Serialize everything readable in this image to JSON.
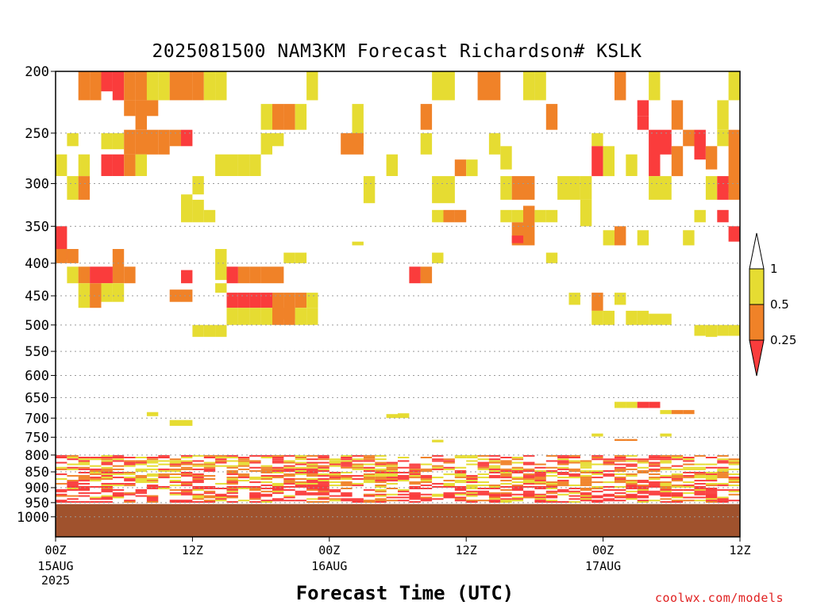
{
  "chart_data": {
    "type": "heatmap",
    "title": "2025081500 NAM3KM Forecast Richardson# KSLK",
    "xlabel": "Forecast Time (UTC)",
    "ylabel": "",
    "y_axis": {
      "scale": "log-pressure",
      "ylim": [
        1000,
        200
      ],
      "ticks": [
        200,
        250,
        300,
        350,
        400,
        450,
        500,
        550,
        600,
        650,
        700,
        750,
        800,
        850,
        900,
        950,
        1000
      ],
      "gridlines": true
    },
    "x_axis": {
      "unit": "forecast hour",
      "xlim": [
        0,
        60
      ],
      "ticks": [
        {
          "hour": 0,
          "label": "00Z",
          "date": "15AUG",
          "year": "2025"
        },
        {
          "hour": 12,
          "label": "12Z",
          "date": "",
          "year": ""
        },
        {
          "hour": 24,
          "label": "00Z",
          "date": "16AUG",
          "year": ""
        },
        {
          "hour": 36,
          "label": "12Z",
          "date": "",
          "year": ""
        },
        {
          "hour": 48,
          "label": "00Z",
          "date": "17AUG",
          "year": ""
        },
        {
          "hour": 60,
          "label": "12Z",
          "date": "",
          "year": ""
        }
      ]
    },
    "legend": {
      "placement": "right",
      "entries": [
        {
          "range": [
            0.5,
            1
          ],
          "color": "#e6dc32",
          "label": "1"
        },
        {
          "range": [
            0.25,
            0.5
          ],
          "color": "#f08228",
          "label": "0.5"
        },
        {
          "range": [
            0,
            0.25
          ],
          "color": "#fa3c3c",
          "label": "0.25"
        }
      ]
    },
    "ground": {
      "color": "#a0522d",
      "top_hpa": 955
    },
    "cells": [
      {
        "t": 2.5,
        "p1": 200,
        "p2": 222,
        "c": 1
      },
      {
        "t": 3.5,
        "p1": 200,
        "p2": 222,
        "c": 1
      },
      {
        "t": 4.5,
        "p1": 200,
        "p2": 215,
        "c": 2
      },
      {
        "t": 5.5,
        "p1": 200,
        "p2": 222,
        "c": 2
      },
      {
        "t": 6.5,
        "p1": 200,
        "p2": 222,
        "c": 1
      },
      {
        "t": 7.5,
        "p1": 200,
        "p2": 222,
        "c": 1
      },
      {
        "t": 8.5,
        "p1": 200,
        "p2": 222,
        "c": 0
      },
      {
        "t": 9.5,
        "p1": 200,
        "p2": 222,
        "c": 0
      },
      {
        "t": 10.5,
        "p1": 200,
        "p2": 222,
        "c": 1
      },
      {
        "t": 11.5,
        "p1": 200,
        "p2": 222,
        "c": 1
      },
      {
        "t": 12.5,
        "p1": 200,
        "p2": 222,
        "c": 1
      },
      {
        "t": 13.5,
        "p1": 200,
        "p2": 222,
        "c": 0
      },
      {
        "t": 14.5,
        "p1": 200,
        "p2": 222,
        "c": 0
      },
      {
        "t": 22.5,
        "p1": 200,
        "p2": 222,
        "c": 0
      },
      {
        "t": 33.5,
        "p1": 200,
        "p2": 222,
        "c": 0
      },
      {
        "t": 34.5,
        "p1": 200,
        "p2": 222,
        "c": 0
      },
      {
        "t": 37.5,
        "p1": 200,
        "p2": 222,
        "c": 1
      },
      {
        "t": 38.5,
        "p1": 200,
        "p2": 222,
        "c": 1
      },
      {
        "t": 41.5,
        "p1": 200,
        "p2": 222,
        "c": 0
      },
      {
        "t": 42.5,
        "p1": 200,
        "p2": 222,
        "c": 0
      },
      {
        "t": 49.5,
        "p1": 200,
        "p2": 222,
        "c": 1
      },
      {
        "t": 52.5,
        "p1": 200,
        "p2": 222,
        "c": 0
      },
      {
        "t": 59.5,
        "p1": 200,
        "p2": 222,
        "c": 0
      },
      {
        "t": 6.5,
        "p1": 222,
        "p2": 235,
        "c": 1
      },
      {
        "t": 7.5,
        "p1": 222,
        "p2": 247,
        "c": 1
      },
      {
        "t": 8.5,
        "p1": 222,
        "p2": 235,
        "c": 1
      },
      {
        "t": 18.5,
        "p1": 225,
        "p2": 247,
        "c": 0
      },
      {
        "t": 19.5,
        "p1": 225,
        "p2": 247,
        "c": 1
      },
      {
        "t": 20.5,
        "p1": 225,
        "p2": 247,
        "c": 1
      },
      {
        "t": 21.5,
        "p1": 225,
        "p2": 247,
        "c": 0
      },
      {
        "t": 26.5,
        "p1": 225,
        "p2": 262,
        "c": 0
      },
      {
        "t": 32.5,
        "p1": 225,
        "p2": 247,
        "c": 1
      },
      {
        "t": 43.5,
        "p1": 225,
        "p2": 247,
        "c": 1
      },
      {
        "t": 51.5,
        "p1": 222,
        "p2": 235,
        "c": 2
      },
      {
        "t": 51.5,
        "p1": 235,
        "p2": 247,
        "c": 2
      },
      {
        "t": 54.5,
        "p1": 222,
        "p2": 247,
        "c": 1
      },
      {
        "t": 58.5,
        "p1": 222,
        "p2": 247,
        "c": 0
      },
      {
        "t": 1.5,
        "p1": 250,
        "p2": 262,
        "c": 0
      },
      {
        "t": 4.5,
        "p1": 250,
        "p2": 265,
        "c": 0
      },
      {
        "t": 5.5,
        "p1": 250,
        "p2": 265,
        "c": 0
      },
      {
        "t": 6.5,
        "p1": 247,
        "p2": 270,
        "c": 1
      },
      {
        "t": 7.5,
        "p1": 247,
        "p2": 270,
        "c": 1
      },
      {
        "t": 8.5,
        "p1": 247,
        "p2": 270,
        "c": 1
      },
      {
        "t": 9.5,
        "p1": 247,
        "p2": 270,
        "c": 1
      },
      {
        "t": 10.5,
        "p1": 247,
        "p2": 262,
        "c": 1
      },
      {
        "t": 11.5,
        "p1": 247,
        "p2": 262,
        "c": 2
      },
      {
        "t": 18.5,
        "p1": 250,
        "p2": 270,
        "c": 0
      },
      {
        "t": 19.5,
        "p1": 250,
        "p2": 262,
        "c": 0
      },
      {
        "t": 25.5,
        "p1": 250,
        "p2": 270,
        "c": 1
      },
      {
        "t": 26.5,
        "p1": 250,
        "p2": 270,
        "c": 1
      },
      {
        "t": 32.5,
        "p1": 250,
        "p2": 270,
        "c": 0
      },
      {
        "t": 38.5,
        "p1": 250,
        "p2": 270,
        "c": 0
      },
      {
        "t": 47.5,
        "p1": 250,
        "p2": 262,
        "c": 0
      },
      {
        "t": 52.5,
        "p1": 247,
        "p2": 292,
        "c": 2
      },
      {
        "t": 53.5,
        "p1": 247,
        "p2": 270,
        "c": 2
      },
      {
        "t": 54.5,
        "p1": 262,
        "p2": 292,
        "c": 1
      },
      {
        "t": 55.5,
        "p1": 247,
        "p2": 262,
        "c": 1
      },
      {
        "t": 56.5,
        "p1": 247,
        "p2": 275,
        "c": 2
      },
      {
        "t": 57.5,
        "p1": 262,
        "p2": 285,
        "c": 1
      },
      {
        "t": 58.5,
        "p1": 247,
        "p2": 262,
        "c": 0
      },
      {
        "t": 59.5,
        "p1": 247,
        "p2": 310,
        "c": 1
      },
      {
        "t": 0.5,
        "p1": 270,
        "p2": 292,
        "c": 0
      },
      {
        "t": 2.5,
        "p1": 270,
        "p2": 292,
        "c": 0
      },
      {
        "t": 4.5,
        "p1": 270,
        "p2": 292,
        "c": 2
      },
      {
        "t": 5.5,
        "p1": 270,
        "p2": 292,
        "c": 2
      },
      {
        "t": 6.5,
        "p1": 270,
        "p2": 292,
        "c": 1
      },
      {
        "t": 7.5,
        "p1": 270,
        "p2": 292,
        "c": 0
      },
      {
        "t": 14.5,
        "p1": 270,
        "p2": 292,
        "c": 0
      },
      {
        "t": 15.5,
        "p1": 270,
        "p2": 292,
        "c": 0
      },
      {
        "t": 16.5,
        "p1": 270,
        "p2": 292,
        "c": 0
      },
      {
        "t": 17.5,
        "p1": 270,
        "p2": 292,
        "c": 0
      },
      {
        "t": 29.5,
        "p1": 270,
        "p2": 292,
        "c": 0
      },
      {
        "t": 35.5,
        "p1": 275,
        "p2": 292,
        "c": 1
      },
      {
        "t": 36.5,
        "p1": 275,
        "p2": 292,
        "c": 0
      },
      {
        "t": 39.5,
        "p1": 262,
        "p2": 285,
        "c": 0
      },
      {
        "t": 47.5,
        "p1": 262,
        "p2": 292,
        "c": 2
      },
      {
        "t": 48.5,
        "p1": 262,
        "p2": 292,
        "c": 0
      },
      {
        "t": 50.5,
        "p1": 270,
        "p2": 292,
        "c": 0
      },
      {
        "t": 1.5,
        "p1": 292,
        "p2": 318,
        "c": 0
      },
      {
        "t": 2.5,
        "p1": 292,
        "p2": 318,
        "c": 1
      },
      {
        "t": 12.5,
        "p1": 292,
        "p2": 312,
        "c": 0
      },
      {
        "t": 27.5,
        "p1": 292,
        "p2": 322,
        "c": 0
      },
      {
        "t": 33.5,
        "p1": 292,
        "p2": 322,
        "c": 0
      },
      {
        "t": 34.5,
        "p1": 292,
        "p2": 322,
        "c": 0
      },
      {
        "t": 39.5,
        "p1": 292,
        "p2": 318,
        "c": 0
      },
      {
        "t": 40.5,
        "p1": 292,
        "p2": 318,
        "c": 1
      },
      {
        "t": 41.5,
        "p1": 292,
        "p2": 318,
        "c": 1
      },
      {
        "t": 44.5,
        "p1": 292,
        "p2": 318,
        "c": 0
      },
      {
        "t": 45.5,
        "p1": 292,
        "p2": 318,
        "c": 0
      },
      {
        "t": 46.5,
        "p1": 292,
        "p2": 318,
        "c": 0
      },
      {
        "t": 52.5,
        "p1": 292,
        "p2": 318,
        "c": 0
      },
      {
        "t": 53.5,
        "p1": 292,
        "p2": 318,
        "c": 0
      },
      {
        "t": 57.5,
        "p1": 292,
        "p2": 318,
        "c": 0
      },
      {
        "t": 58.5,
        "p1": 292,
        "p2": 318,
        "c": 2
      },
      {
        "t": 59.5,
        "p1": 292,
        "p2": 318,
        "c": 1
      },
      {
        "t": 11.5,
        "p1": 312,
        "p2": 345,
        "c": 0
      },
      {
        "t": 12.5,
        "p1": 318,
        "p2": 345,
        "c": 0
      },
      {
        "t": 13.5,
        "p1": 330,
        "p2": 345,
        "c": 0
      },
      {
        "t": 33.5,
        "p1": 330,
        "p2": 345,
        "c": 0
      },
      {
        "t": 34.5,
        "p1": 330,
        "p2": 345,
        "c": 1
      },
      {
        "t": 35.5,
        "p1": 330,
        "p2": 345,
        "c": 1
      },
      {
        "t": 39.5,
        "p1": 330,
        "p2": 345,
        "c": 0
      },
      {
        "t": 40.5,
        "p1": 330,
        "p2": 345,
        "c": 0
      },
      {
        "t": 41.5,
        "p1": 325,
        "p2": 375,
        "c": 1
      },
      {
        "t": 42.5,
        "p1": 330,
        "p2": 345,
        "c": 0
      },
      {
        "t": 43.5,
        "p1": 330,
        "p2": 345,
        "c": 0
      },
      {
        "t": 46.5,
        "p1": 318,
        "p2": 350,
        "c": 0
      },
      {
        "t": 56.5,
        "p1": 330,
        "p2": 345,
        "c": 0
      },
      {
        "t": 58.5,
        "p1": 330,
        "p2": 345,
        "c": 2
      },
      {
        "t": 59.5,
        "p1": 350,
        "p2": 370,
        "c": 2
      },
      {
        "t": 0.5,
        "p1": 350,
        "p2": 395,
        "c": 2
      },
      {
        "t": 40.5,
        "p1": 345,
        "p2": 375,
        "c": 1
      },
      {
        "t": 40.5,
        "p1": 362,
        "p2": 372,
        "c": 2
      },
      {
        "t": 48.5,
        "p1": 355,
        "p2": 375,
        "c": 0
      },
      {
        "t": 49.5,
        "p1": 350,
        "p2": 375,
        "c": 1
      },
      {
        "t": 51.5,
        "p1": 355,
        "p2": 375,
        "c": 0
      },
      {
        "t": 55.5,
        "p1": 355,
        "p2": 375,
        "c": 0
      },
      {
        "t": 26.5,
        "p1": 370,
        "p2": 375,
        "c": 0
      },
      {
        "t": 0.5,
        "p1": 380,
        "p2": 400,
        "c": 1
      },
      {
        "t": 1.5,
        "p1": 380,
        "p2": 400,
        "c": 1
      },
      {
        "t": 5.5,
        "p1": 380,
        "p2": 430,
        "c": 1
      },
      {
        "t": 14.5,
        "p1": 380,
        "p2": 425,
        "c": 0
      },
      {
        "t": 20.5,
        "p1": 385,
        "p2": 400,
        "c": 0
      },
      {
        "t": 21.5,
        "p1": 385,
        "p2": 400,
        "c": 0
      },
      {
        "t": 33.5,
        "p1": 385,
        "p2": 400,
        "c": 0
      },
      {
        "t": 43.5,
        "p1": 385,
        "p2": 400,
        "c": 0
      },
      {
        "t": 1.5,
        "p1": 405,
        "p2": 430,
        "c": 0
      },
      {
        "t": 2.5,
        "p1": 405,
        "p2": 430,
        "c": 1
      },
      {
        "t": 3.5,
        "p1": 405,
        "p2": 430,
        "c": 2
      },
      {
        "t": 4.5,
        "p1": 405,
        "p2": 430,
        "c": 2
      },
      {
        "t": 6.5,
        "p1": 405,
        "p2": 430,
        "c": 1
      },
      {
        "t": 11.5,
        "p1": 410,
        "p2": 430,
        "c": 2
      },
      {
        "t": 15.5,
        "p1": 405,
        "p2": 430,
        "c": 2
      },
      {
        "t": 16.5,
        "p1": 405,
        "p2": 430,
        "c": 1
      },
      {
        "t": 17.5,
        "p1": 405,
        "p2": 430,
        "c": 1
      },
      {
        "t": 18.5,
        "p1": 405,
        "p2": 430,
        "c": 1
      },
      {
        "t": 19.5,
        "p1": 405,
        "p2": 430,
        "c": 1
      },
      {
        "t": 31.5,
        "p1": 405,
        "p2": 430,
        "c": 2
      },
      {
        "t": 32.5,
        "p1": 405,
        "p2": 430,
        "c": 1
      },
      {
        "t": 2.5,
        "p1": 430,
        "p2": 470,
        "c": 0
      },
      {
        "t": 3.5,
        "p1": 430,
        "p2": 470,
        "c": 1
      },
      {
        "t": 4.5,
        "p1": 430,
        "p2": 460,
        "c": 0
      },
      {
        "t": 5.5,
        "p1": 430,
        "p2": 460,
        "c": 0
      },
      {
        "t": 10.5,
        "p1": 440,
        "p2": 460,
        "c": 1
      },
      {
        "t": 11.5,
        "p1": 440,
        "p2": 460,
        "c": 1
      },
      {
        "t": 14.5,
        "p1": 430,
        "p2": 445,
        "c": 0
      },
      {
        "t": 15.5,
        "p1": 445,
        "p2": 470,
        "c": 2
      },
      {
        "t": 16.5,
        "p1": 445,
        "p2": 470,
        "c": 2
      },
      {
        "t": 17.5,
        "p1": 445,
        "p2": 470,
        "c": 2
      },
      {
        "t": 18.5,
        "p1": 445,
        "p2": 470,
        "c": 2
      },
      {
        "t": 19.5,
        "p1": 445,
        "p2": 490,
        "c": 1
      },
      {
        "t": 20.5,
        "p1": 445,
        "p2": 490,
        "c": 1
      },
      {
        "t": 21.5,
        "p1": 445,
        "p2": 470,
        "c": 1
      },
      {
        "t": 22.5,
        "p1": 445,
        "p2": 470,
        "c": 0
      },
      {
        "t": 45.5,
        "p1": 445,
        "p2": 465,
        "c": 0
      },
      {
        "t": 47.5,
        "p1": 445,
        "p2": 475,
        "c": 1
      },
      {
        "t": 49.5,
        "p1": 445,
        "p2": 465,
        "c": 0
      },
      {
        "t": 15.5,
        "p1": 470,
        "p2": 500,
        "c": 0
      },
      {
        "t": 16.5,
        "p1": 470,
        "p2": 500,
        "c": 0
      },
      {
        "t": 17.5,
        "p1": 470,
        "p2": 500,
        "c": 0
      },
      {
        "t": 18.5,
        "p1": 470,
        "p2": 500,
        "c": 0
      },
      {
        "t": 19.5,
        "p1": 470,
        "p2": 500,
        "c": 1
      },
      {
        "t": 20.5,
        "p1": 470,
        "p2": 500,
        "c": 1
      },
      {
        "t": 21.5,
        "p1": 470,
        "p2": 500,
        "c": 0
      },
      {
        "t": 22.5,
        "p1": 470,
        "p2": 500,
        "c": 0
      },
      {
        "t": 47.5,
        "p1": 475,
        "p2": 500,
        "c": 0
      },
      {
        "t": 48.5,
        "p1": 475,
        "p2": 500,
        "c": 0
      },
      {
        "t": 50.5,
        "p1": 475,
        "p2": 500,
        "c": 0
      },
      {
        "t": 51.5,
        "p1": 475,
        "p2": 500,
        "c": 0
      },
      {
        "t": 52.5,
        "p1": 480,
        "p2": 500,
        "c": 0
      },
      {
        "t": 53.5,
        "p1": 480,
        "p2": 500,
        "c": 0
      },
      {
        "t": 12.5,
        "p1": 500,
        "p2": 522,
        "c": 0
      },
      {
        "t": 13.5,
        "p1": 500,
        "p2": 522,
        "c": 0
      },
      {
        "t": 14.5,
        "p1": 500,
        "p2": 522,
        "c": 0
      },
      {
        "t": 56.5,
        "p1": 500,
        "p2": 520,
        "c": 0
      },
      {
        "t": 57.5,
        "p1": 500,
        "p2": 522,
        "c": 0
      },
      {
        "t": 58.5,
        "p1": 500,
        "p2": 520,
        "c": 0
      },
      {
        "t": 59.5,
        "p1": 500,
        "p2": 520,
        "c": 0
      },
      {
        "t": 49.5,
        "p1": 660,
        "p2": 675,
        "c": 0
      },
      {
        "t": 50.5,
        "p1": 660,
        "p2": 675,
        "c": 0
      },
      {
        "t": 51.5,
        "p1": 660,
        "p2": 675,
        "c": 2
      },
      {
        "t": 52.5,
        "p1": 660,
        "p2": 675,
        "c": 2
      },
      {
        "t": 53.5,
        "p1": 680,
        "p2": 690,
        "c": 0
      },
      {
        "t": 54.5,
        "p1": 680,
        "p2": 690,
        "c": 1
      },
      {
        "t": 55.5,
        "p1": 680,
        "p2": 690,
        "c": 1
      },
      {
        "t": 8.5,
        "p1": 685,
        "p2": 695,
        "c": 0
      },
      {
        "t": 29.5,
        "p1": 690,
        "p2": 700,
        "c": 0
      },
      {
        "t": 30.5,
        "p1": 688,
        "p2": 700,
        "c": 0
      },
      {
        "t": 10.5,
        "p1": 705,
        "p2": 720,
        "c": 0
      },
      {
        "t": 11.5,
        "p1": 705,
        "p2": 720,
        "c": 0
      },
      {
        "t": 47.5,
        "p1": 740,
        "p2": 748,
        "c": 0
      },
      {
        "t": 53.5,
        "p1": 740,
        "p2": 748,
        "c": 0
      },
      {
        "t": 49.5,
        "p1": 755,
        "p2": 760,
        "c": 1
      },
      {
        "t": 50.5,
        "p1": 755,
        "p2": 760,
        "c": 1
      },
      {
        "t": 33.5,
        "p1": 757,
        "p2": 764,
        "c": 0
      }
    ],
    "lowlevel_pattern_hpa": [
      800,
      950
    ]
  },
  "credit": "coolwx.com/models"
}
